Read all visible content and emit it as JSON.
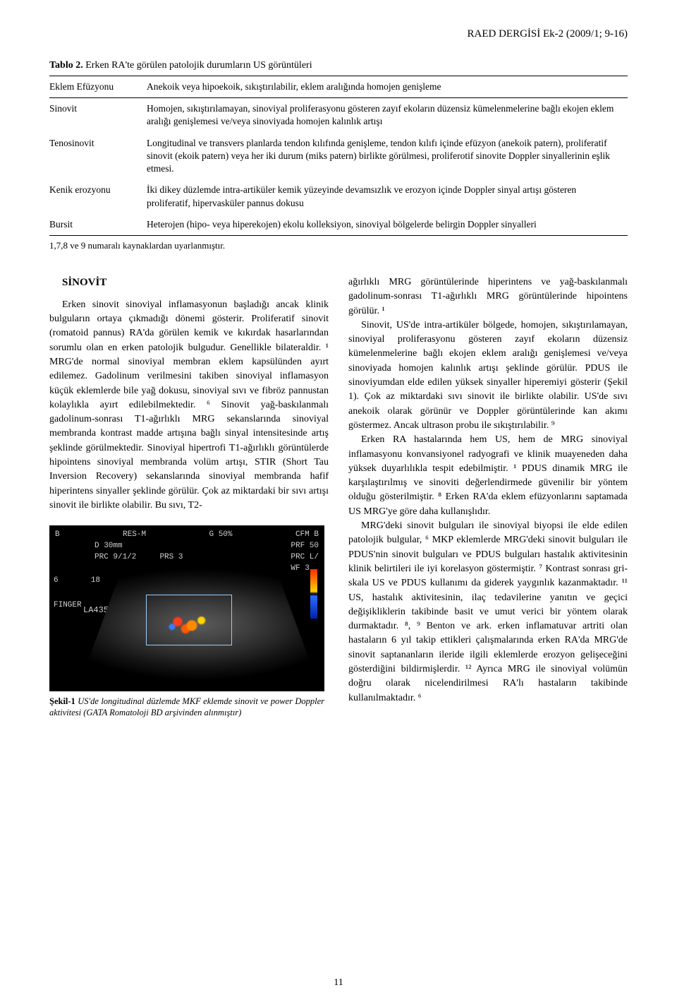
{
  "running_head": "RAED DERGİSİ Ek-2 (2009/1; 9-16)",
  "table": {
    "caption_bold": "Tablo 2.",
    "caption_rest": " Erken RA'te görülen patolojik durumların US görüntüleri",
    "rows": [
      {
        "term": "Eklem Efüzyonu",
        "desc": "Anekoik veya hipoekoik, sıkıştırılabilir, eklem aralığında homojen genişleme"
      },
      {
        "term": "Sinovit",
        "desc": "Homojen, sıkıştırılamayan, sinoviyal proliferasyonu gösteren zayıf ekoların düzensiz kümelenmelerine bağlı ekojen eklem aralığı genişlemesi ve/veya sinoviyada homojen kalınlık artışı"
      },
      {
        "term": "Tenosinovit",
        "desc": "Longitudinal ve transvers planlarda tendon kılıfında genişleme, tendon kılıfı içinde efüzyon (anekoik patern), proliferatif sinovit (ekoik patern) veya her iki durum (miks patern) birlikte görülmesi, proliferotif sinovite Doppler sinyallerinin eşlik etmesi."
      },
      {
        "term": "Kenik erozyonu",
        "desc": "İki dikey düzlemde intra-artiküler kemik yüzeyinde devamsızlık ve erozyon içinde Doppler sinyal artışı gösteren proliferatif, hipervasküler pannus dokusu"
      },
      {
        "term": "Bursit",
        "desc": "Heterojen (hipo- veya hiperekojen) ekolu kolleksiyon, sinoviyal bölgelerde belirgin Doppler sinyalleri"
      }
    ],
    "note": "1,7,8 ve 9 numaralı kaynaklardan uyarlanmıştır."
  },
  "section_head": "SİNOVİT",
  "col1_para": "Erken sinovit sinoviyal inflamasyonun başladığı ancak klinik bulguların ortaya çıkmadığı dönemi gösterir. Proliferatif sinovit (romatoid pannus) RA'da görülen kemik ve kıkırdak hasarlarından sorumlu olan en erken patolojik bulgudur. Genellikle bilateraldir. ¹ MRG'de normal sinoviyal membran eklem kapsülünden ayırt edilemez. Gadolinum verilmesini takiben sinoviyal inflamasyon küçük eklemlerde bile yağ dokusu, sinoviyal sıvı ve fibröz pannustan kolaylıkla ayırt edilebilmektedir. ⁶ Sinovit yağ-baskılanmalı gadolinum-sonrası T1-ağırlıklı MRG sekanslarında sinoviyal membranda kontrast madde artışına bağlı sinyal intensitesinde artış şeklinde görülmektedir. Sinoviyal hipertrofi T1-ağırlıklı görüntülerde hipointens sinoviyal membranda volüm artışı, STIR (Short Tau Inversion Recovery) sekanslarında sinoviyal membranda hafif hiperintens sinyaller şeklinde görülür. Çok az miktardaki bir sıvı artışı sinovit ile birlikte olabilir. Bu sıvı, T2-",
  "col2_para1": "ağırlıklı MRG görüntülerinde hiperintens ve yağ-baskılanmalı gadolinum-sonrası T1-ağırlıklı MRG görüntülerinde hipointens görülür. ¹",
  "col2_para2": "Sinovit, US'de intra-artiküler bölgede, homojen, sıkıştırılamayan, sinoviyal proliferasyonu gösteren zayıf ekoların düzensiz kümelenmelerine bağlı ekojen eklem aralığı genişlemesi ve/veya sinoviyada homojen kalınlık artışı şeklinde görülür. PDUS ile sinoviyumdan elde edilen yüksek sinyaller hiperemiyi gösterir (Şekil 1). Çok az miktardaki sıvı sinovit ile birlikte olabilir. US'de sıvı anekoik olarak görünür ve Doppler görüntülerinde kan akımı göstermez. Ancak ultrason probu ile sıkıştırılabilir. ⁹",
  "col2_para3": "Erken RA hastalarında hem US, hem de MRG sinoviyal inflamasyonu konvansiyonel radyografi ve klinik muayeneden daha yüksek duyarlılıkla tespit edebilmiştir. ¹ PDUS dinamik MRG ile karşılaştırılmış ve sinoviti değerlendirmede güvenilir bir yöntem olduğu gösterilmiştir. ⁸ Erken RA'da eklem efüzyonlarını saptamada US MRG'ye göre daha kullanışlıdır.",
  "col2_para4": "MRG'deki sinovit bulguları ile sinoviyal biyopsi ile elde edilen patolojik bulgular, ⁶ MKP eklemlerde MRG'deki sinovit bulguları ile PDUS'nin sinovit bulguları ve PDUS bulguları hastalık aktivitesinin klinik belirtileri ile iyi korelasyon göstermiştir. ⁷ Kontrast sonrası gri-skala US ve PDUS kullanımı da giderek yaygınlık kazanmaktadır. ¹¹ US, hastalık aktivitesinin, ilaç tedavilerine yanıtın ve geçici değişikliklerin takibinde basit ve umut verici bir yöntem olarak durmaktadır. ⁸, ⁹ Benton ve ark. erken inflamatuvar artriti olan hastaların 6 yıl takip ettikleri çalışmalarında erken RA'da MRG'de sinovit saptananların ileride ilgili eklemlerde erozyon gelişeceğini gösterdiğini bildirmişlerdir. ¹² Ayrıca MRG ile sinoviyal volümün doğru olarak nicelendirilmesi RA'lı hastaların takibinde kullanılmaktadır. ⁶",
  "figure": {
    "us_overlay": {
      "top_left_b": "B",
      "res": "RES-M",
      "g": "G 50%",
      "cfm": "CFM  B",
      "depth": "D 30mm",
      "prf": "PRF 50",
      "prc": "PRC  9/1/2",
      "prs": "PRS  3",
      "prc2": "PRC  L/",
      "wf": "WF  3",
      "left_num_a": "6",
      "left_num_b": "18",
      "finger": "FINGER",
      "probe": "LA435"
    },
    "caption_num": "Şekil-1",
    "caption_text": "  US'de longitudinal düzlemde MKF eklemde sinovit ve power Doppler  aktivitesi (GATA Romatoloji BD arşivinden alınmıştır)"
  },
  "page_number": "11"
}
